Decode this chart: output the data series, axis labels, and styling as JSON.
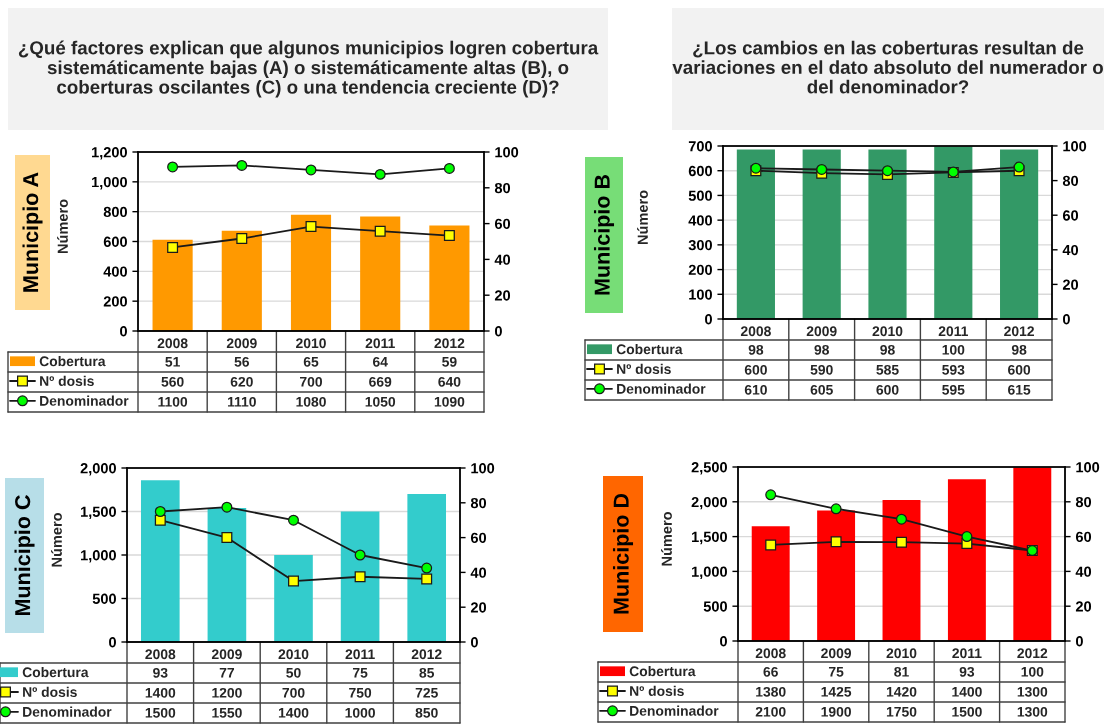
{
  "chart_data": [
    {
      "type": "bar",
      "title": "¿Qué factores explican que algunos municipios logren cobertura sistemáticamente bajas (A) o sistemáticamente altas (B), o coberturas oscilantes (C) o una tendencia creciente (D)?",
      "subtitle": "Municipio A",
      "ylabel": "Número",
      "categories": [
        "2008",
        "2009",
        "2010",
        "2011",
        "2012"
      ],
      "series": [
        {
          "name": "Cobertura",
          "axis": "y2",
          "color": "#ff9900",
          "values": [
            51,
            56,
            65,
            64,
            59
          ]
        },
        {
          "name": "Nº dosis",
          "type": "line",
          "marker": "square",
          "color": "#ffff00",
          "values": [
            560,
            620,
            700,
            669,
            640
          ]
        },
        {
          "name": "Denominador",
          "type": "line",
          "marker": "circle",
          "color": "#00ff00",
          "values": [
            1100,
            1110,
            1080,
            1050,
            1090
          ]
        }
      ],
      "ylim": [
        0,
        1200
      ],
      "yticks": [
        0,
        200,
        400,
        600,
        800,
        {
          "value": 1000,
          "label": "1,000"
        },
        {
          "value": 1200,
          "label": "1,200"
        }
      ],
      "y2lim": [
        0,
        100
      ],
      "y2ticks": [
        0,
        20,
        40,
        60,
        80,
        100
      ],
      "grid": "y",
      "legend": "bottom left",
      "data_labels": true
    },
    {
      "type": "bar",
      "title": "¿Los cambios en las coberturas resultan de variaciones en el dato absoluto del numerador o del denominador?",
      "subtitle": "Municipio B",
      "ylabel": "Número",
      "categories": [
        "2008",
        "2009",
        "2010",
        "2011",
        "2012"
      ],
      "series": [
        {
          "name": "Cobertura",
          "axis": "y2",
          "color": "#339966",
          "values": [
            98,
            98,
            98,
            100,
            98
          ]
        },
        {
          "name": "Nº dosis",
          "type": "line",
          "marker": "square",
          "color": "#ffff00",
          "values": [
            600,
            590,
            585,
            593,
            600
          ]
        },
        {
          "name": "Denominador",
          "type": "line",
          "marker": "circle",
          "color": "#00ff00",
          "values": [
            610,
            605,
            600,
            595,
            615
          ]
        }
      ],
      "ylim": [
        0,
        700
      ],
      "yticks": [
        0,
        100,
        200,
        300,
        400,
        500,
        600,
        700
      ],
      "y2lim": [
        0,
        100
      ],
      "y2ticks": [
        0,
        20,
        40,
        60,
        80,
        100
      ],
      "grid": "y",
      "legend": "bottom left",
      "data_labels": true
    },
    {
      "type": "bar",
      "subtitle": "Municipio C",
      "ylabel": "Número",
      "categories": [
        "2008",
        "2009",
        "2010",
        "2011",
        "2012"
      ],
      "series": [
        {
          "name": "Cobertura",
          "axis": "y2",
          "color": "#33cccc",
          "values": [
            93,
            77,
            50,
            75,
            85
          ]
        },
        {
          "name": "Nº dosis",
          "type": "line",
          "marker": "square",
          "color": "#ffff00",
          "values": [
            1400,
            1200,
            700,
            750,
            725
          ]
        },
        {
          "name": "Denominador",
          "type": "line",
          "marker": "circle",
          "color": "#00ff00",
          "values": [
            1500,
            1550,
            1400,
            1000,
            850
          ]
        }
      ],
      "ylim": [
        0,
        2000
      ],
      "yticks": [
        0,
        500,
        {
          "value": 1000,
          "label": "1,000"
        },
        {
          "value": 1500,
          "label": "1,500"
        },
        {
          "value": 2000,
          "label": "2,000"
        }
      ],
      "y2lim": [
        0,
        100
      ],
      "y2ticks": [
        0,
        20,
        40,
        60,
        80,
        100
      ],
      "grid": "y",
      "legend": "bottom left",
      "data_labels": true
    },
    {
      "type": "bar",
      "subtitle": "Municipio D",
      "ylabel": "Número",
      "categories": [
        "2008",
        "2009",
        "2010",
        "2011",
        "2012"
      ],
      "series": [
        {
          "name": "Cobertura",
          "axis": "y2",
          "color": "#ff0000",
          "values": [
            66,
            75,
            81,
            93,
            100
          ]
        },
        {
          "name": "Nº dosis",
          "type": "line",
          "marker": "square",
          "color": "#ffff00",
          "values": [
            1380,
            1425,
            1420,
            1400,
            1300
          ]
        },
        {
          "name": "Denominador",
          "type": "line",
          "marker": "circle",
          "color": "#00ff00",
          "values": [
            2100,
            1900,
            1750,
            1500,
            1300
          ]
        }
      ],
      "ylim": [
        0,
        2500
      ],
      "yticks": [
        0,
        500,
        {
          "value": 1000,
          "label": "1,000"
        },
        {
          "value": 1500,
          "label": "1,500"
        },
        {
          "value": 2000,
          "label": "2,000"
        },
        {
          "value": 2500,
          "label": "2,500"
        }
      ],
      "y2lim": [
        0,
        100
      ],
      "y2ticks": [
        0,
        20,
        40,
        60,
        80,
        100
      ],
      "grid": "y",
      "legend": "bottom left",
      "data_labels": true
    }
  ]
}
